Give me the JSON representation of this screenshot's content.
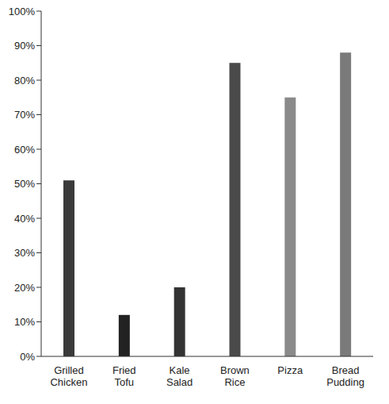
{
  "chart_data": {
    "type": "bar",
    "categories": [
      "Grilled Chicken",
      "Fried Tofu",
      "Kale Salad",
      "Brown Rice",
      "Pizza",
      "Bread Pudding"
    ],
    "values": [
      51,
      12,
      20,
      85,
      75,
      88
    ],
    "colors": [
      "#3a3a3a",
      "#222222",
      "#333333",
      "#4a4a4a",
      "#8a8a8a",
      "#7a7a7a"
    ],
    "ylim": [
      0,
      100
    ],
    "yticks": [
      {
        "value": 0,
        "label": "0%"
      },
      {
        "value": 10,
        "label": "10%"
      },
      {
        "value": 20,
        "label": "20%"
      },
      {
        "value": 30,
        "label": "30%"
      },
      {
        "value": 40,
        "label": "40%"
      },
      {
        "value": 50,
        "label": "50%"
      },
      {
        "value": 60,
        "label": "60%"
      },
      {
        "value": 70,
        "label": "70%"
      },
      {
        "value": 80,
        "label": "80%"
      },
      {
        "value": 90,
        "label": "90%"
      },
      {
        "value": 100,
        "label": "100%"
      }
    ],
    "grid": false
  }
}
